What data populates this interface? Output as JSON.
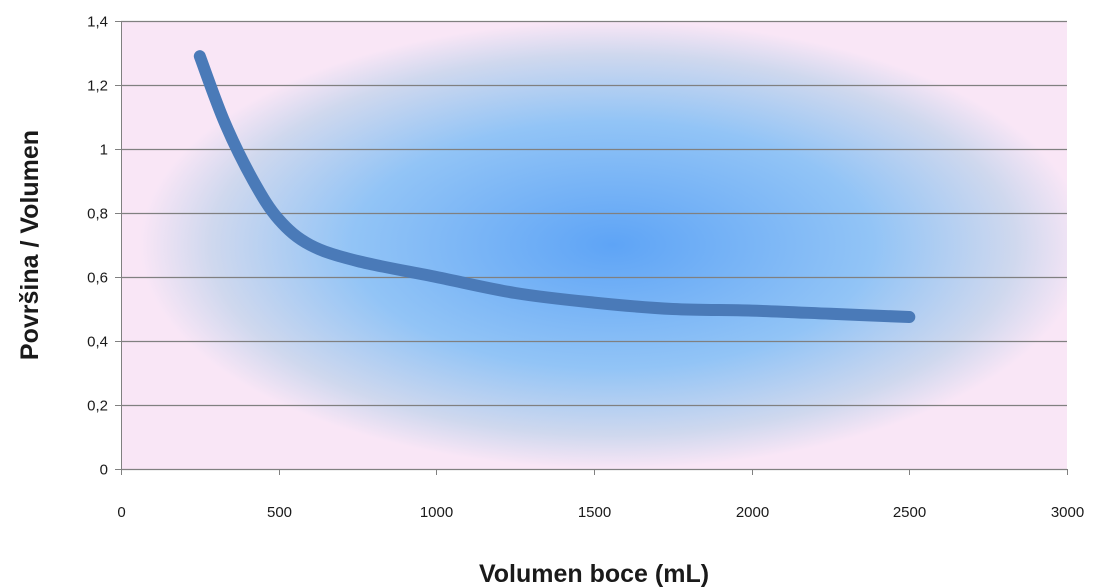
{
  "chart_data": {
    "type": "line",
    "title": "",
    "xlabel": "Volumen boce (mL)",
    "ylabel": "Površina / Volumen",
    "xlim": [
      0,
      3000
    ],
    "ylim": [
      0,
      1.4
    ],
    "x_ticks": [
      0,
      500,
      1000,
      1500,
      2000,
      2500,
      3000
    ],
    "x_tick_labels": [
      "0",
      "500",
      "1000",
      "1500",
      "2000",
      "2500",
      "3000"
    ],
    "y_ticks": [
      0,
      0.2,
      0.4,
      0.6,
      0.8,
      1,
      1.2,
      1.4
    ],
    "y_tick_labels": [
      "0",
      "0,2",
      "0,4",
      "0,6",
      "0,8",
      "1",
      "1,2",
      "1,4"
    ],
    "grid": "horizontal",
    "legend": "none",
    "series": [
      {
        "color": "#4a7ab8",
        "x": [
          250,
          330,
          420,
          500,
          600,
          750,
          1000,
          1250,
          1500,
          1750,
          2000,
          2250,
          2500
        ],
        "y": [
          1.29,
          1.08,
          0.9,
          0.78,
          0.7,
          0.65,
          0.6,
          0.55,
          0.52,
          0.5,
          0.495,
          0.485,
          0.475
        ]
      }
    ],
    "colors": {
      "plot_center": "#5ea4f6",
      "plot_edge": "#f9e6f6",
      "gridline": "#808080",
      "axis": "#808080"
    }
  }
}
